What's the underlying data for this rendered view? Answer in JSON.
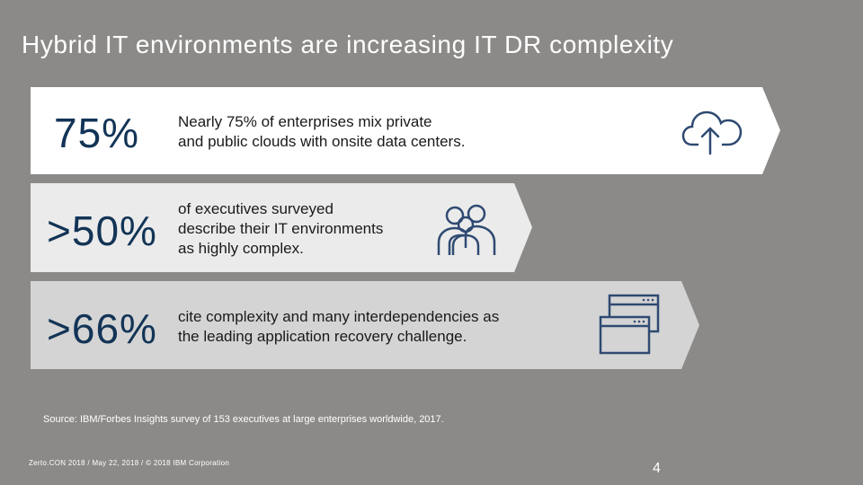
{
  "slide": {
    "title": "Hybrid IT environments are increasing IT DR complexity",
    "stats": [
      {
        "value": "75%",
        "text": "Nearly 75% of enterprises mix private\nand public clouds with onsite data centers.",
        "icon": "cloud-upload-icon",
        "fill": "#ffffff"
      },
      {
        "value": ">50%",
        "text": "of executives surveyed\ndescribe their IT environments\nas highly complex.",
        "icon": "people-icon",
        "fill": "#ebebeb"
      },
      {
        "value": ">66%",
        "text": "cite complexity and many interdependencies as\nthe leading application recovery challenge.",
        "icon": "browser-windows-icon",
        "fill": "#d4d4d4"
      }
    ],
    "source": "Source: IBM/Forbes Insights survey of 153 executives at large enterprises worldwide, 2017.",
    "footer": "Zerto.CON 2018 /  May 22,  2018 / © 2018 IBM Corporation",
    "page_number": "4"
  },
  "colors": {
    "background": "#8c8a88",
    "stat_text": "#123456",
    "icon_stroke": "#2f4a72"
  }
}
